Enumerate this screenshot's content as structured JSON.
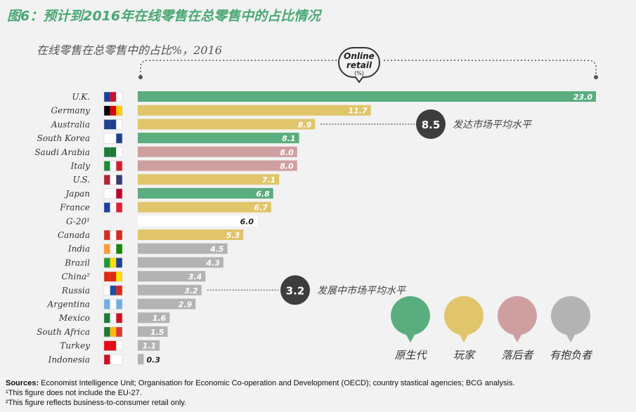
{
  "title": "图6：预计到2016年在线零售在总零售中的占比情况",
  "subtitle": "在线零售在总零售中的占比%，2016",
  "header_bubble": {
    "line1": "Online",
    "line2": "retail",
    "line3": "(%)"
  },
  "colors": {
    "native": "#5aad7e",
    "player": "#e0c56a",
    "laggard": "#cf9f9f",
    "aspiring": "#b3b3b3",
    "benchmark": "#ffffff",
    "title": "#4aa774",
    "dark_circle": "#3d3d3d"
  },
  "chart_data": {
    "type": "bar",
    "orientation": "horizontal",
    "categories": [
      "U.K.",
      "Germany",
      "Australia",
      "South Korea",
      "Saudi Arabia",
      "Italy",
      "U.S.",
      "Japan",
      "France",
      "G-20¹",
      "Canada",
      "India",
      "Brazil",
      "China²",
      "Russia",
      "Argentina",
      "Mexico",
      "South Africa",
      "Turkey",
      "Indonesia"
    ],
    "values": [
      23.0,
      11.7,
      8.9,
      8.1,
      8.0,
      8.0,
      7.1,
      6.8,
      6.7,
      6.0,
      5.3,
      4.5,
      4.3,
      3.4,
      3.2,
      2.9,
      1.6,
      1.5,
      1.1,
      0.3
    ],
    "value_labels": [
      "23.0",
      "11.7",
      "8.9",
      "8.1",
      "8.0",
      "8.0",
      "7.1",
      "6.8",
      "6.7",
      "6.0",
      "5.3",
      "4.5",
      "4.3",
      "3.4",
      "3.2",
      "2.9",
      "1.6",
      "1.5",
      "1.1",
      "0.3"
    ],
    "groups": [
      "native",
      "player",
      "player",
      "native",
      "laggard",
      "laggard",
      "player",
      "native",
      "player",
      "benchmark",
      "player",
      "aspiring",
      "aspiring",
      "aspiring",
      "aspiring",
      "aspiring",
      "aspiring",
      "aspiring",
      "aspiring",
      "aspiring"
    ],
    "xlim": [
      0,
      23.0
    ],
    "annotations": [
      {
        "value": "8.5",
        "label": "发达市场平均水平",
        "row": 2
      },
      {
        "value": "3.2",
        "label": "发展中市场平均水平",
        "row": 14
      }
    ],
    "legend": [
      {
        "group": "native",
        "label": "原生代"
      },
      {
        "group": "player",
        "label": "玩家"
      },
      {
        "group": "laggard",
        "label": "落后者"
      },
      {
        "group": "aspiring",
        "label": "有抱负者"
      }
    ],
    "legend_position": "bottom-right"
  },
  "footer": {
    "sources_label": "Sources:",
    "sources_text": "Economist Intelligence Unit; Organisation for Economic Co-operation and Development (OECD); country stastical agencies; BCG analysis.",
    "note1": "¹This figure does not include the EU-27.",
    "note2": "²This figure reflects business-to-consumer retail only."
  }
}
